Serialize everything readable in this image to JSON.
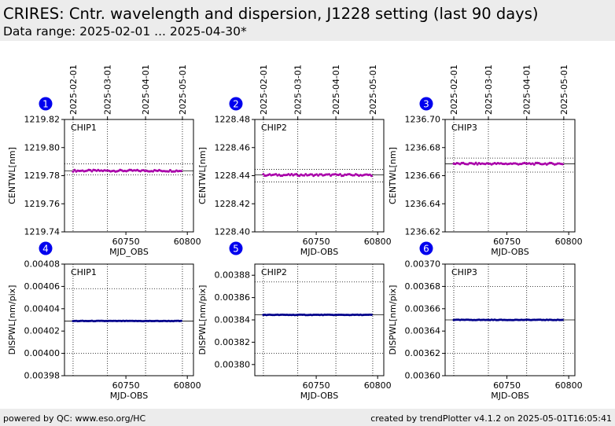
{
  "header": {
    "title": "CRIRES: Cntr. wavelength and dispersion, J1228 setting  (last 90 days)",
    "subtitle": "Data range: 2025-02-01 ... 2025-04-30*"
  },
  "footer": {
    "left": "powered by QC: www.eso.org/HC",
    "right": "created by trendPlotter v4.1.2 on 2025-05-01T16:05:41"
  },
  "colors": {
    "centwl_marker": "#aa00aa",
    "centwl_line": "#000000",
    "dispwl_marker": "#00008b",
    "badge_fill": "#0000ee",
    "badge_text": "#ffffff"
  },
  "chart_data": [
    {
      "panel": "1",
      "type": "scatter",
      "label": "CHIP1",
      "xlabel": "MJD_OBS",
      "ylabel": "CENTWL[nm]",
      "xlim": [
        60700,
        60805
      ],
      "ylim": [
        1219.74,
        1219.82
      ],
      "yticks": [
        "1219.74",
        "1219.76",
        "1219.78",
        "1219.80",
        "1219.82"
      ],
      "xticks": [
        "60750",
        "60800"
      ],
      "date_ticks": [
        "2025-02-01",
        "2025-03-01",
        "2025-04-01",
        "2025-05-01"
      ],
      "series": [
        {
          "x_start": 60707,
          "x_end": 60795,
          "y": 1219.7835
        }
      ],
      "hlines": [
        {
          "y": 1219.7835,
          "style": "solid"
        },
        {
          "y": 1219.7885,
          "style": "dotted"
        },
        {
          "y": 1219.7805,
          "style": "dotted"
        }
      ]
    },
    {
      "panel": "2",
      "type": "scatter",
      "label": "CHIP2",
      "xlabel": "MJD-OBS",
      "ylabel": "CENTWL[nm]",
      "xlim": [
        60700,
        60805
      ],
      "ylim": [
        1228.4,
        1228.48
      ],
      "yticks": [
        "1228.40",
        "1228.42",
        "1228.44",
        "1228.46",
        "1228.48"
      ],
      "xticks": [
        "60750",
        "60800"
      ],
      "date_ticks": [
        "2025-02-01",
        "2025-03-01",
        "2025-04-01",
        "2025-05-01"
      ],
      "series": [
        {
          "x_start": 60707,
          "x_end": 60795,
          "y": 1228.4405
        }
      ],
      "hlines": [
        {
          "y": 1228.4405,
          "style": "solid"
        },
        {
          "y": 1228.4445,
          "style": "dotted"
        },
        {
          "y": 1228.4355,
          "style": "dotted"
        }
      ]
    },
    {
      "panel": "3",
      "type": "scatter",
      "label": "CHIP3",
      "xlabel": "MJD-OBS",
      "ylabel": "CENTWL[nm]",
      "xlim": [
        60700,
        60805
      ],
      "ylim": [
        1236.62,
        1236.7
      ],
      "yticks": [
        "1236.62",
        "1236.64",
        "1236.66",
        "1236.68",
        "1236.70"
      ],
      "xticks": [
        "60750",
        "60800"
      ],
      "date_ticks": [
        "2025-02-01",
        "2025-03-01",
        "2025-04-01",
        "2025-05-01"
      ],
      "series": [
        {
          "x_start": 60707,
          "x_end": 60795,
          "y": 1236.6685
        }
      ],
      "hlines": [
        {
          "y": 1236.6685,
          "style": "solid"
        },
        {
          "y": 1236.6725,
          "style": "dotted"
        },
        {
          "y": 1236.6625,
          "style": "dotted"
        }
      ]
    },
    {
      "panel": "4",
      "type": "scatter",
      "label": "CHIP1",
      "xlabel": "MJD-OBS",
      "ylabel": "DISPWL[nm/pix]",
      "xlim": [
        60700,
        60805
      ],
      "ylim": [
        0.00398,
        0.00408
      ],
      "yticks": [
        "0.00398",
        "0.00400",
        "0.00402",
        "0.00404",
        "0.00406",
        "0.00408"
      ],
      "xticks": [
        "60750",
        "60800"
      ],
      "series": [
        {
          "x_start": 60707,
          "x_end": 60795,
          "y": 0.004029
        }
      ],
      "hlines": [
        {
          "y": 0.004029,
          "style": "solid"
        },
        {
          "y": 0.004058,
          "style": "dotted"
        },
        {
          "y": 0.004,
          "style": "dotted"
        }
      ]
    },
    {
      "panel": "5",
      "type": "scatter",
      "label": "CHIP2",
      "xlabel": "MJD-OBS",
      "ylabel": "DISPWL[nm/pix]",
      "xlim": [
        60700,
        60805
      ],
      "ylim": [
        0.00379,
        0.00389
      ],
      "yticks": [
        "0.00380",
        "0.00382",
        "0.00384",
        "0.00386",
        "0.00388"
      ],
      "xticks": [
        "60750",
        "60800"
      ],
      "series": [
        {
          "x_start": 60707,
          "x_end": 60795,
          "y": 0.0038445
        }
      ],
      "hlines": [
        {
          "y": 0.0038445,
          "style": "solid"
        },
        {
          "y": 0.003874,
          "style": "dotted"
        },
        {
          "y": 0.00381,
          "style": "dotted"
        }
      ]
    },
    {
      "panel": "6",
      "type": "scatter",
      "label": "CHIP3",
      "xlabel": "MJD-OBS",
      "ylabel": "DISPWL[nm/pix]",
      "xlim": [
        60700,
        60805
      ],
      "ylim": [
        0.0036,
        0.0037
      ],
      "yticks": [
        "0.00360",
        "0.00362",
        "0.00364",
        "0.00366",
        "0.00368",
        "0.00370"
      ],
      "xticks": [
        "60750",
        "60800"
      ],
      "series": [
        {
          "x_start": 60707,
          "x_end": 60795,
          "y": 0.00365
        }
      ],
      "hlines": [
        {
          "y": 0.00365,
          "style": "solid"
        },
        {
          "y": 0.00368,
          "style": "dotted"
        },
        {
          "y": 0.00362,
          "style": "dotted"
        }
      ]
    }
  ]
}
